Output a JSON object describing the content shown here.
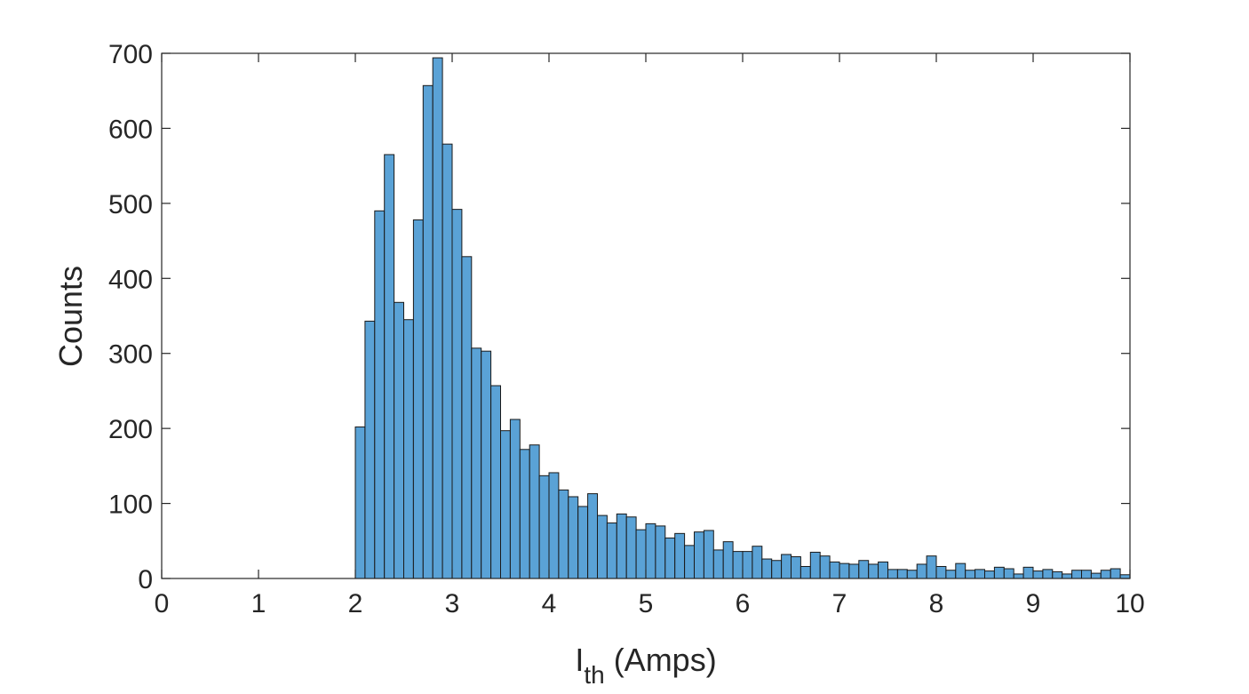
{
  "chart_data": {
    "type": "bar",
    "title": "",
    "xlabel": {
      "main": "I",
      "subscript": "th",
      "suffix": " (Amps)"
    },
    "ylabel": "Counts",
    "xlim": [
      0,
      10
    ],
    "ylim": [
      0,
      700
    ],
    "xticks": [
      0,
      1,
      2,
      3,
      4,
      5,
      6,
      7,
      8,
      9,
      10
    ],
    "yticks": [
      0,
      100,
      200,
      300,
      400,
      500,
      600,
      700
    ],
    "grid": false,
    "bin_width": 0.1,
    "bin_start": 0,
    "colors": {
      "bar_fill": "#5aa2d6",
      "bar_edge": "#1a1a1a",
      "axis": "#262626"
    },
    "values": [
      0,
      0,
      0,
      0,
      0,
      0,
      0,
      0,
      0,
      0,
      0,
      0,
      0,
      0,
      0,
      0,
      0,
      0,
      0,
      0,
      202,
      343,
      490,
      565,
      368,
      345,
      478,
      657,
      694,
      579,
      492,
      429,
      307,
      303,
      257,
      197,
      212,
      172,
      178,
      137,
      141,
      118,
      109,
      96,
      113,
      84,
      74,
      86,
      82,
      65,
      73,
      70,
      54,
      60,
      44,
      62,
      64,
      38,
      49,
      36,
      36,
      43,
      26,
      24,
      32,
      29,
      16,
      35,
      30,
      22,
      20,
      19,
      24,
      19,
      22,
      12,
      12,
      11,
      19,
      30,
      16,
      11,
      20,
      11,
      12,
      10,
      15,
      13,
      6,
      15,
      10,
      12,
      9,
      6,
      11,
      11,
      7,
      11,
      13,
      5
    ]
  }
}
